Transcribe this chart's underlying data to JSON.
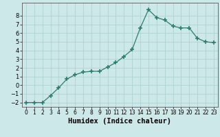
{
  "x": [
    0,
    1,
    2,
    3,
    4,
    5,
    6,
    7,
    8,
    9,
    10,
    11,
    12,
    13,
    14,
    15,
    16,
    17,
    18,
    19,
    20,
    21,
    22,
    23
  ],
  "y": [
    -2.0,
    -2.0,
    -2.0,
    -1.2,
    -0.3,
    0.7,
    1.2,
    1.5,
    1.6,
    1.6,
    2.1,
    2.6,
    3.3,
    4.1,
    6.6,
    8.7,
    7.8,
    7.5,
    6.8,
    6.6,
    6.6,
    5.4,
    5.0,
    4.9
  ],
  "xlabel": "Humidex (Indice chaleur)",
  "ylim": [
    -2.5,
    9.5
  ],
  "xlim": [
    -0.5,
    23.5
  ],
  "yticks": [
    -2,
    -1,
    0,
    1,
    2,
    3,
    4,
    5,
    6,
    7,
    8
  ],
  "xticks": [
    0,
    1,
    2,
    3,
    4,
    5,
    6,
    7,
    8,
    9,
    10,
    11,
    12,
    13,
    14,
    15,
    16,
    17,
    18,
    19,
    20,
    21,
    22,
    23
  ],
  "line_color": "#2d7b6e",
  "marker_color": "#2d7b6e",
  "bg_color": "#cce8e8",
  "grid_color": "#aacece",
  "xlabel_fontsize": 7.5,
  "tick_fontsize_x": 5.5,
  "tick_fontsize_y": 6.0
}
